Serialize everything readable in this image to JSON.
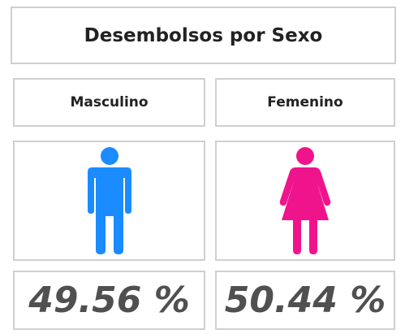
{
  "header": {
    "title": "Desembolsos por Sexo"
  },
  "cards": [
    {
      "label": "Masculino",
      "value": "49.56 %"
    },
    {
      "label": "Femenino",
      "value": "50.44 %"
    }
  ]
}
